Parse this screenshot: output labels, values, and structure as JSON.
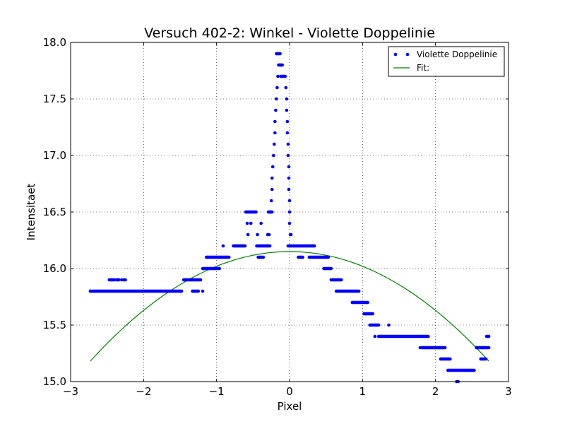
{
  "chart_data": {
    "type": "scatter",
    "title": "Versuch 402-2: Winkel - Violette Doppelinie",
    "xlabel": "Pixel",
    "ylabel": "Intensitaet",
    "xlim": [
      -3,
      3
    ],
    "ylim": [
      15.0,
      18.0
    ],
    "x_ticks": [
      -3,
      -2,
      -1,
      0,
      1,
      2,
      3
    ],
    "x_tick_labels": [
      "−3",
      "−2",
      "−1",
      "0",
      "1",
      "2",
      "3"
    ],
    "y_ticks": [
      15.0,
      15.5,
      16.0,
      16.5,
      17.0,
      17.5,
      18.0
    ],
    "y_tick_labels": [
      "15.0",
      "15.5",
      "16.0",
      "16.5",
      "17.0",
      "17.5",
      "18.0"
    ],
    "grid": true,
    "legend_position": "top-right",
    "colors": {
      "data": "#0000ff",
      "fit": "#008000"
    },
    "series": [
      {
        "name": "Violette Doppelinie",
        "kind": "scatter",
        "segments": [
          {
            "x": [
              -2.73,
              -1.48
            ],
            "y": 15.8
          },
          {
            "x": [
              -2.47,
              -2.4
            ],
            "y": 15.9
          },
          {
            "x": [
              -2.37,
              -2.34
            ],
            "y": 15.9
          },
          {
            "x": [
              -2.27,
              -2.25
            ],
            "y": 15.9
          },
          {
            "x": [
              -1.45,
              -1.22
            ],
            "y": 15.9
          },
          {
            "x": [
              -1.33,
              -1.29
            ],
            "y": 15.8
          },
          {
            "x": [
              -1.27,
              -1.25
            ],
            "y": 15.8
          },
          {
            "x": [
              -1.19,
              -0.96
            ],
            "y": 16.0
          },
          {
            "x": [
              -1.14,
              -0.83
            ],
            "y": 16.1
          },
          {
            "x": [
              -0.77,
              -0.61
            ],
            "y": 16.2
          },
          {
            "x": [
              -0.6,
              -0.46
            ],
            "y": 16.5
          },
          {
            "x": [
              -0.45,
              -0.27
            ],
            "y": 16.2
          },
          {
            "x": [
              -0.43,
              -0.36
            ],
            "y": 16.1
          },
          {
            "x": [
              -0.29,
              -0.24
            ],
            "y": 16.5
          },
          {
            "x": [
              -0.18,
              -0.13
            ],
            "y": 17.9
          },
          {
            "x": [
              -0.15,
              -0.1
            ],
            "y": 17.8
          },
          {
            "x": [
              -0.12,
              -0.06
            ],
            "y": 17.7
          },
          {
            "x": [
              -0.02,
              0.34
            ],
            "y": 16.2
          },
          {
            "x": [
              0.12,
              0.18
            ],
            "y": 16.1
          },
          {
            "x": [
              0.27,
              0.53
            ],
            "y": 16.1
          },
          {
            "x": [
              0.47,
              0.57
            ],
            "y": 16.0
          },
          {
            "x": [
              0.57,
              0.71
            ],
            "y": 15.9
          },
          {
            "x": [
              0.64,
              0.95
            ],
            "y": 15.8
          },
          {
            "x": [
              0.86,
              1.07
            ],
            "y": 15.7
          },
          {
            "x": [
              1.02,
              1.14
            ],
            "y": 15.6
          },
          {
            "x": [
              1.1,
              1.22
            ],
            "y": 15.5
          },
          {
            "x": [
              1.22,
              1.9
            ],
            "y": 15.4
          },
          {
            "x": [
              1.82,
              2.13
            ],
            "y": 15.3
          },
          {
            "x": [
              2.07,
              2.2
            ],
            "y": 15.2
          },
          {
            "x": [
              2.17,
              2.53
            ],
            "y": 15.1
          },
          {
            "x": [
              2.56,
              2.73
            ],
            "y": 15.3
          },
          {
            "x": [
              2.62,
              2.69
            ],
            "y": 15.2
          },
          {
            "x": [
              2.7,
              2.73
            ],
            "y": 15.4
          }
        ],
        "points": [
          [
            -2.3,
            15.9
          ],
          [
            -1.19,
            15.8
          ],
          [
            -0.91,
            16.2
          ],
          [
            -0.58,
            16.4
          ],
          [
            -0.57,
            16.3
          ],
          [
            -0.53,
            16.4
          ],
          [
            -0.44,
            16.3
          ],
          [
            -0.39,
            16.4
          ],
          [
            -0.3,
            16.3
          ],
          [
            -0.28,
            16.3
          ],
          [
            -0.26,
            16.5
          ],
          [
            -0.25,
            16.6
          ],
          [
            -0.24,
            16.7
          ],
          [
            -0.24,
            16.8
          ],
          [
            -0.23,
            16.9
          ],
          [
            -0.22,
            17.0
          ],
          [
            -0.21,
            17.1
          ],
          [
            -0.2,
            17.2
          ],
          [
            -0.2,
            17.3
          ],
          [
            -0.19,
            17.4
          ],
          [
            -0.18,
            17.5
          ],
          [
            -0.17,
            17.6
          ],
          [
            -0.16,
            17.7
          ],
          [
            -0.05,
            17.6
          ],
          [
            -0.04,
            17.5
          ],
          [
            -0.04,
            17.4
          ],
          [
            -0.03,
            17.3
          ],
          [
            -0.03,
            17.2
          ],
          [
            -0.02,
            17.1
          ],
          [
            -0.02,
            17.0
          ],
          [
            -0.01,
            16.9
          ],
          [
            -0.01,
            16.8
          ],
          [
            -0.01,
            16.7
          ],
          [
            0.0,
            16.6
          ],
          [
            0.0,
            16.5
          ],
          [
            0.0,
            16.4
          ],
          [
            0.01,
            16.3
          ],
          [
            0.02,
            16.3
          ],
          [
            1.17,
            15.4
          ],
          [
            1.36,
            15.5
          ],
          [
            1.79,
            15.3
          ],
          [
            2.29,
            15.0
          ],
          [
            2.31,
            15.0
          ]
        ]
      },
      {
        "name": "Fit:",
        "kind": "line",
        "model": "quadratic",
        "vertex_x": 0.0,
        "vertex_y": 16.15,
        "curvature": -0.13,
        "x_range": [
          -2.73,
          2.73
        ]
      }
    ]
  }
}
